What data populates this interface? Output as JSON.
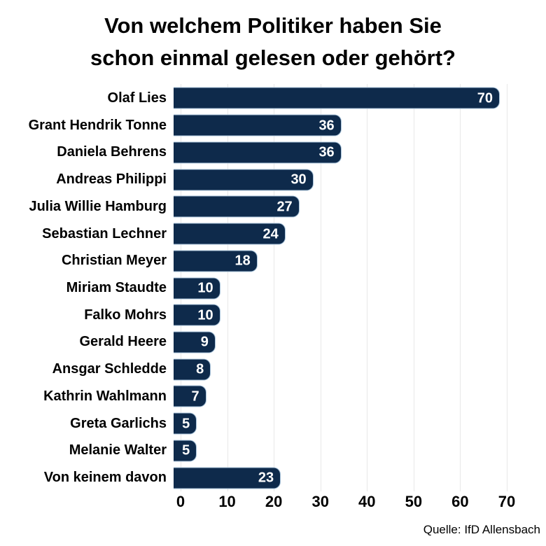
{
  "title": {
    "line1": "Von welchem Politiker haben Sie",
    "line2": "schon einmal gelesen oder gehört?"
  },
  "source": "Quelle: IfD Allensbach",
  "colors": {
    "bar": "#0e2a4b",
    "bar_edge": "#a8c3da",
    "grid": "#e8e8e8",
    "value_label": "#ffffff",
    "text": "#000000",
    "background": "#ffffff"
  },
  "chart_data": {
    "type": "bar",
    "orientation": "horizontal",
    "title": "Von welchem Politiker haben Sie schon einmal gelesen oder gehört?",
    "categories": [
      "Olaf Lies",
      "Grant Hendrik Tonne",
      "Daniela Behrens",
      "Andreas Philippi",
      "Julia Willie Hamburg",
      "Sebastian Lechner",
      "Christian Meyer",
      "Miriam Staudte",
      "Falko Mohrs",
      "Gerald Heere",
      "Ansgar Schledde",
      "Kathrin Wahlmann",
      "Greta Garlichs",
      "Melanie Walter",
      "Von keinem davon"
    ],
    "values": [
      70,
      36,
      36,
      30,
      27,
      24,
      18,
      10,
      10,
      9,
      8,
      7,
      5,
      5,
      23
    ],
    "xlabel": "",
    "ylabel": "",
    "xlim": [
      0,
      70
    ],
    "xticks": [
      0,
      10,
      20,
      30,
      40,
      50,
      60,
      70
    ],
    "grid": true,
    "legend": false,
    "value_labels": "inside-end",
    "source": "Quelle: IfD Allensbach"
  }
}
